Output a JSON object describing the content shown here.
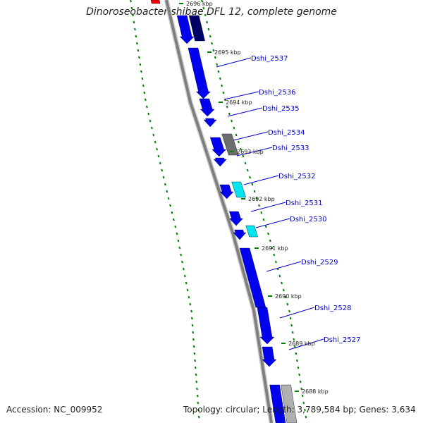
{
  "title": "Dinoroseobacter shibae DFL 12, complete genome",
  "footer": {
    "accession": "Accession: NC_009952",
    "summary": "Topology: circular; Length: 3,789,584 bp; Genes: 3,634"
  },
  "colors": {
    "backbone": "#7f7f7f",
    "forward_gene": "#0000ee",
    "reverse_gene": "#0000ee",
    "dark_gene": "#000066",
    "gray_gene": "#6e6e6e",
    "cyan_gene": "#00e5ee",
    "red_gene": "#ff0000",
    "tick": "#008000",
    "gene_label": "#0000cc",
    "kbp_label": "#222222"
  },
  "scale_labels": [
    "2696 kbp",
    "2695 kbp",
    "2694 kbp",
    "2693 kbp",
    "2692 kbp",
    "2691 kbp",
    "2690 kbp",
    "2689 kbp",
    "2688 kbp"
  ],
  "gene_labels": [
    "Dshi_2537",
    "Dshi_2536",
    "Dshi_2535",
    "Dshi_2534",
    "Dshi_2533",
    "Dshi_2532",
    "Dshi_2531",
    "Dshi_2530",
    "Dshi_2529",
    "Dshi_2528",
    "Dshi_2527"
  ]
}
